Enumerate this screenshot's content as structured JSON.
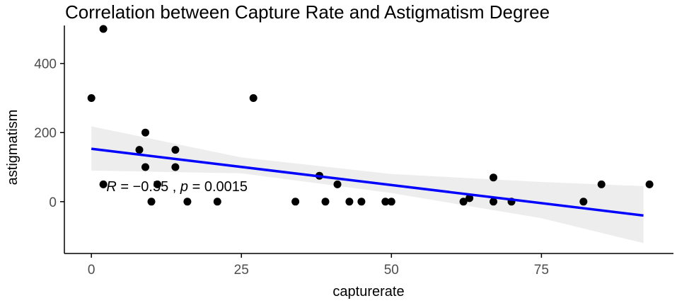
{
  "chart_data": {
    "type": "scatter",
    "title": "Correlation between Capture Rate and Astigmatism Degree",
    "xlabel": "capturerate",
    "ylabel": "astigmatism",
    "xlim": [
      -4.5,
      97
    ],
    "ylim": [
      -150,
      510
    ],
    "xticks": [
      0,
      25,
      50,
      75
    ],
    "yticks": [
      0,
      200,
      400
    ],
    "grid": false,
    "legend": "none",
    "annotation": {
      "r_label": "R",
      "r_text": " = −0.55 , ",
      "p_label": "p",
      "p_text": " = 0.0015",
      "x": 2.5,
      "y": 30
    },
    "points": [
      {
        "x": 0,
        "y": 300
      },
      {
        "x": 2,
        "y": 500
      },
      {
        "x": 2,
        "y": 50
      },
      {
        "x": 8,
        "y": 150
      },
      {
        "x": 9,
        "y": 200
      },
      {
        "x": 9,
        "y": 100
      },
      {
        "x": 10,
        "y": 0
      },
      {
        "x": 11,
        "y": 50
      },
      {
        "x": 14,
        "y": 150
      },
      {
        "x": 14,
        "y": 100
      },
      {
        "x": 16,
        "y": 0
      },
      {
        "x": 21,
        "y": 0
      },
      {
        "x": 27,
        "y": 300
      },
      {
        "x": 34,
        "y": 0
      },
      {
        "x": 38,
        "y": 75
      },
      {
        "x": 39,
        "y": 0
      },
      {
        "x": 41,
        "y": 50
      },
      {
        "x": 43,
        "y": 0
      },
      {
        "x": 45,
        "y": 0
      },
      {
        "x": 49,
        "y": 0
      },
      {
        "x": 50,
        "y": 0
      },
      {
        "x": 62,
        "y": 0
      },
      {
        "x": 63,
        "y": 10
      },
      {
        "x": 67,
        "y": 70
      },
      {
        "x": 67,
        "y": 0
      },
      {
        "x": 70,
        "y": 0
      },
      {
        "x": 82,
        "y": 0
      },
      {
        "x": 85,
        "y": 50
      },
      {
        "x": 93,
        "y": 50
      }
    ],
    "regression": {
      "x": [
        0,
        92
      ],
      "y": [
        153,
        -40
      ]
    },
    "confidence_band": {
      "x": [
        0,
        25,
        50,
        75,
        92
      ],
      "lower": [
        90,
        82,
        25,
        -48,
        -120
      ],
      "upper": [
        218,
        128,
        80,
        57,
        45
      ]
    },
    "colors": {
      "point": "#000000",
      "line": "#0000ff",
      "band": "#ebebeb",
      "axis": "#000000",
      "text": "#000000",
      "tick_text": "#4d4d4d"
    }
  }
}
